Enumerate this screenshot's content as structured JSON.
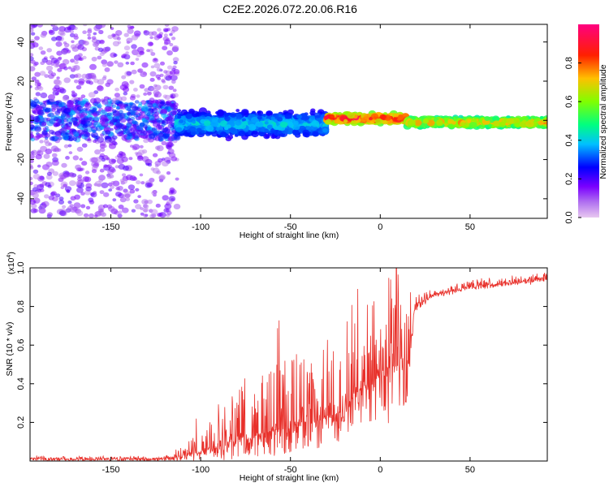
{
  "title": "C2E2.2026.072.20.06.R16",
  "chart_data": [
    {
      "type": "heatmap",
      "name": "spectrogram",
      "xlabel": "Height of straight line (km)",
      "ylabel": "Frequency (Hz)",
      "xlim": [
        -195,
        93
      ],
      "ylim": [
        -50,
        49
      ],
      "xticks": [
        -150,
        -100,
        -50,
        0,
        50
      ],
      "yticks": [
        -40,
        -20,
        0,
        20,
        40
      ],
      "x_tick_labels": [
        "-150",
        "-100",
        "-50",
        "0",
        "50"
      ],
      "y_tick_labels": [
        "-40",
        "-20",
        "0",
        "20",
        "40"
      ],
      "description_points": [
        {
          "x_range": [
            -195,
            -113
          ],
          "freq_center": 0,
          "freq_spread": 49,
          "amplitude": [
            0.05,
            0.3
          ],
          "pattern": "scattered noise"
        },
        {
          "x_range": [
            -113,
            -30
          ],
          "freq_center": -2,
          "freq_spread": 8,
          "amplitude": [
            0.2,
            0.45
          ],
          "pattern": "band"
        },
        {
          "x_range": [
            -30,
            15
          ],
          "freq_center": 1,
          "freq_spread": 3,
          "amplitude": [
            0.5,
            1.0
          ],
          "pattern": "narrow band"
        },
        {
          "x_range": [
            15,
            93
          ],
          "freq_center": -1,
          "freq_spread": 3,
          "amplitude": [
            0.4,
            0.8
          ],
          "pattern": "narrow band"
        }
      ],
      "colorbar": {
        "label": "Normalized spectral amplitude",
        "range": [
          0,
          1
        ],
        "ticks": [
          0.0,
          0.2,
          0.4,
          0.6,
          0.8
        ],
        "tick_labels": [
          "0.0",
          "0.2",
          "0.4",
          "0.6",
          "0.8"
        ],
        "colors": [
          "#e8c8f0",
          "#7a00ff",
          "#0000ff",
          "#00e0ff",
          "#00ff40",
          "#c0ff00",
          "#ffa000",
          "#ff0000",
          "#ff0080"
        ]
      }
    },
    {
      "type": "line",
      "name": "snr",
      "xlabel": "Height of straight line (km)",
      "ylabel": "SNR (10 * v/v)",
      "y_scale_label": "(x10",
      "y_scale_exponent": "4",
      "y_scale_suffix": ")",
      "xlim": [
        -195,
        93
      ],
      "ylim": [
        0,
        1.0
      ],
      "xticks": [
        -150,
        -100,
        -50,
        0,
        50
      ],
      "yticks": [
        0.2,
        0.4,
        0.6,
        0.8,
        1.0
      ],
      "x_tick_labels": [
        "-150",
        "-100",
        "-50",
        "0",
        "50"
      ],
      "y_tick_labels": [
        "0.2",
        "0.4",
        "0.6",
        "0.8",
        "1.0"
      ],
      "color": "#e8302a",
      "series": [
        {
          "name": "SNR",
          "x": [
            -195,
            -160,
            -120,
            -110,
            -100,
            -90,
            -80,
            -70,
            -60,
            -50,
            -40,
            -30,
            -20,
            -15,
            -10,
            -5,
            0,
            5,
            10,
            15,
            18,
            20,
            30,
            40,
            50,
            60,
            70,
            80,
            93
          ],
          "y_base": [
            0.01,
            0.01,
            0.01,
            0.02,
            0.05,
            0.08,
            0.1,
            0.13,
            0.15,
            0.18,
            0.2,
            0.22,
            0.25,
            0.33,
            0.38,
            0.42,
            0.46,
            0.48,
            0.5,
            0.55,
            0.68,
            0.8,
            0.86,
            0.88,
            0.9,
            0.91,
            0.92,
            0.93,
            0.94
          ],
          "y_spike": [
            0.01,
            0.01,
            0.01,
            0.05,
            0.12,
            0.22,
            0.3,
            0.33,
            0.36,
            0.38,
            0.4,
            0.42,
            0.44,
            0.55,
            0.6,
            0.64,
            0.74,
            0.8,
            0.82,
            0.7,
            0.12,
            0.05,
            0.03,
            0.03,
            0.03,
            0.03,
            0.03,
            0.03,
            0.03
          ]
        }
      ]
    }
  ]
}
